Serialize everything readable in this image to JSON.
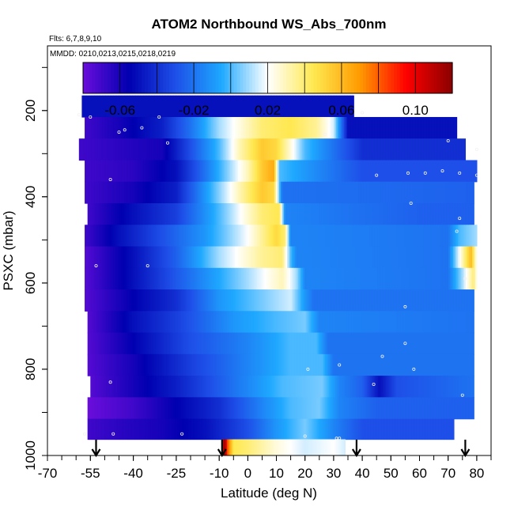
{
  "chart_data": {
    "type": "heatmap",
    "title": "ATOM2 Northbound WS_Abs_700nm",
    "subtitle_flights": "Flts: 6,7,8,9,10",
    "subtitle_dates": "MMDD: 0210,0213,0215,0218,0219",
    "xlabel": "Latitude (deg N)",
    "ylabel": "PSXC (mbar)",
    "xlim": [
      -70,
      85
    ],
    "ylim": [
      1000,
      50
    ],
    "x_ticks": [
      -70,
      -55,
      -40,
      -25,
      -10,
      0,
      10,
      20,
      30,
      40,
      50,
      60,
      70,
      80
    ],
    "x_tick_labels": [
      "-70",
      "-55",
      "-40",
      "-25",
      "-10",
      "0",
      "10",
      "20",
      "30",
      "40",
      "50",
      "60",
      "70",
      "80"
    ],
    "y_ticks": [
      200,
      400,
      600,
      800,
      1000
    ],
    "y_tick_labels": [
      "200",
      "400",
      "600",
      "800",
      "1000"
    ],
    "colorbar": {
      "range": [
        -0.08,
        0.12
      ],
      "ticks": [
        -0.06,
        -0.02,
        0.02,
        0.06,
        0.1
      ],
      "tick_labels": [
        "-0.06",
        "-0.02",
        "0.02",
        "0.06",
        "0.10"
      ],
      "colors": [
        "#6A0DDB",
        "#0000B0",
        "#1E4FE8",
        "#1EA8FF",
        "#FFFFFF",
        "#FFE850",
        "#FF9A00",
        "#FF0000",
        "#8B0000"
      ]
    },
    "layers": [
      {
        "p": 190,
        "lat_min": -58,
        "lat_max": 37,
        "knots": [
          [
            -58,
            -0.05
          ],
          [
            37,
            -0.05
          ]
        ]
      },
      {
        "p": 240,
        "lat_min": -57,
        "lat_max": 73,
        "knots": [
          [
            -57,
            -0.07
          ],
          [
            -45,
            -0.06
          ],
          [
            -30,
            -0.045
          ],
          [
            -20,
            -0.02
          ],
          [
            -10,
            0.01
          ],
          [
            5,
            0.04
          ],
          [
            15,
            0.045
          ],
          [
            24,
            0.035
          ],
          [
            30,
            0.015
          ],
          [
            35,
            -0.05
          ],
          [
            73,
            -0.05
          ]
        ]
      },
      {
        "p": 290,
        "lat_min": -59,
        "lat_max": 76,
        "knots": [
          [
            -59,
            -0.07
          ],
          [
            -45,
            -0.065
          ],
          [
            -30,
            -0.06
          ],
          [
            -20,
            -0.03
          ],
          [
            -10,
            0.0
          ],
          [
            -3,
            0.03
          ],
          [
            5,
            0.055
          ],
          [
            10,
            0.05
          ],
          [
            20,
            0.0
          ],
          [
            35,
            -0.03
          ],
          [
            40,
            -0.04
          ],
          [
            76,
            -0.04
          ]
        ]
      },
      {
        "p": 340,
        "lat_min": -57,
        "lat_max": 80,
        "knots": [
          [
            -57,
            -0.07
          ],
          [
            -40,
            -0.065
          ],
          [
            -25,
            -0.05
          ],
          [
            -15,
            -0.02
          ],
          [
            0,
            0.03
          ],
          [
            5,
            0.055
          ],
          [
            9,
            0.065
          ],
          [
            11,
            0.0
          ],
          [
            40,
            -0.03
          ],
          [
            80,
            -0.03
          ]
        ]
      },
      {
        "p": 390,
        "lat_min": -57,
        "lat_max": 79,
        "knots": [
          [
            -57,
            -0.07
          ],
          [
            -40,
            -0.06
          ],
          [
            -25,
            -0.045
          ],
          [
            -15,
            -0.01
          ],
          [
            0,
            0.04
          ],
          [
            5,
            0.055
          ],
          [
            9,
            0.05
          ],
          [
            12,
            -0.02
          ],
          [
            79,
            -0.025
          ]
        ]
      },
      {
        "p": 440,
        "lat_min": -56,
        "lat_max": 79,
        "knots": [
          [
            -56,
            -0.07
          ],
          [
            -40,
            -0.05
          ],
          [
            -25,
            -0.035
          ],
          [
            -10,
            0.0
          ],
          [
            5,
            0.04
          ],
          [
            11,
            0.045
          ],
          [
            13,
            -0.015
          ],
          [
            60,
            -0.025
          ],
          [
            79,
            -0.025
          ]
        ]
      },
      {
        "p": 490,
        "lat_min": -57,
        "lat_max": 80,
        "knots": [
          [
            -57,
            -0.07
          ],
          [
            -45,
            -0.05
          ],
          [
            -30,
            -0.03
          ],
          [
            -15,
            -0.01
          ],
          [
            0,
            0.02
          ],
          [
            10,
            0.05
          ],
          [
            13,
            0.04
          ],
          [
            15,
            -0.015
          ],
          [
            70,
            -0.02
          ],
          [
            74,
            0.0
          ],
          [
            80,
            0.01
          ]
        ]
      },
      {
        "p": 540,
        "lat_min": -57,
        "lat_max": 80,
        "knots": [
          [
            -57,
            -0.075
          ],
          [
            -40,
            -0.05
          ],
          [
            -25,
            -0.025
          ],
          [
            -10,
            0.01
          ],
          [
            5,
            0.035
          ],
          [
            12,
            0.04
          ],
          [
            15,
            0.0
          ],
          [
            17,
            -0.015
          ],
          [
            70,
            -0.02
          ],
          [
            74,
            0.02
          ],
          [
            78,
            0.06
          ],
          [
            80,
            0.02
          ]
        ]
      },
      {
        "p": 590,
        "lat_min": -57,
        "lat_max": 80,
        "knots": [
          [
            -57,
            -0.075
          ],
          [
            -40,
            -0.05
          ],
          [
            -20,
            -0.02
          ],
          [
            0,
            0.01
          ],
          [
            12,
            0.03
          ],
          [
            17,
            0.01
          ],
          [
            20,
            -0.015
          ],
          [
            70,
            -0.02
          ],
          [
            75,
            0.01
          ],
          [
            79,
            0.04
          ],
          [
            80,
            0.02
          ]
        ]
      },
      {
        "p": 640,
        "lat_min": -57,
        "lat_max": 79,
        "knots": [
          [
            -57,
            -0.075
          ],
          [
            -40,
            -0.055
          ],
          [
            -25,
            -0.04
          ],
          [
            -10,
            -0.01
          ],
          [
            5,
            0.005
          ],
          [
            15,
            0.015
          ],
          [
            20,
            -0.01
          ],
          [
            23,
            -0.02
          ],
          [
            79,
            -0.02
          ]
        ]
      },
      {
        "p": 690,
        "lat_min": -56,
        "lat_max": 79,
        "knots": [
          [
            -56,
            -0.075
          ],
          [
            -40,
            -0.05
          ],
          [
            -25,
            -0.035
          ],
          [
            -5,
            -0.01
          ],
          [
            10,
            0.0
          ],
          [
            20,
            0.005
          ],
          [
            25,
            -0.015
          ],
          [
            79,
            -0.02
          ]
        ]
      },
      {
        "p": 740,
        "lat_min": -56,
        "lat_max": 79,
        "knots": [
          [
            -56,
            -0.075
          ],
          [
            -40,
            -0.055
          ],
          [
            -20,
            -0.03
          ],
          [
            0,
            -0.015
          ],
          [
            15,
            0.0
          ],
          [
            24,
            0.0
          ],
          [
            28,
            -0.02
          ],
          [
            79,
            -0.02
          ]
        ]
      },
      {
        "p": 790,
        "lat_min": -56,
        "lat_max": 79,
        "knots": [
          [
            -56,
            -0.075
          ],
          [
            -40,
            -0.06
          ],
          [
            -20,
            -0.035
          ],
          [
            0,
            -0.015
          ],
          [
            15,
            0.0
          ],
          [
            26,
            0.0
          ],
          [
            30,
            -0.02
          ],
          [
            79,
            -0.02
          ]
        ]
      },
      {
        "p": 840,
        "lat_min": -55,
        "lat_max": 79,
        "knots": [
          [
            -55,
            -0.075
          ],
          [
            -40,
            -0.06
          ],
          [
            -25,
            -0.045
          ],
          [
            -5,
            -0.02
          ],
          [
            12,
            0.0
          ],
          [
            26,
            0.005
          ],
          [
            32,
            -0.015
          ],
          [
            40,
            -0.025
          ],
          [
            46,
            -0.05
          ],
          [
            52,
            -0.03
          ],
          [
            79,
            -0.02
          ]
        ]
      },
      {
        "p": 890,
        "lat_min": -56,
        "lat_max": 79,
        "knots": [
          [
            -56,
            -0.08
          ],
          [
            -40,
            -0.07
          ],
          [
            -25,
            -0.055
          ],
          [
            -10,
            -0.04
          ],
          [
            5,
            -0.015
          ],
          [
            15,
            0.0
          ],
          [
            25,
            0.005
          ],
          [
            32,
            -0.015
          ],
          [
            45,
            -0.025
          ],
          [
            79,
            -0.025
          ]
        ]
      },
      {
        "p": 940,
        "lat_min": -56,
        "lat_max": 72,
        "knots": [
          [
            -56,
            -0.07
          ],
          [
            -45,
            -0.065
          ],
          [
            -30,
            -0.06
          ],
          [
            -15,
            -0.05
          ],
          [
            0,
            -0.03
          ],
          [
            10,
            -0.01
          ],
          [
            20,
            0.005
          ],
          [
            30,
            -0.015
          ],
          [
            40,
            -0.03
          ],
          [
            72,
            -0.03
          ]
        ]
      },
      {
        "p": 985,
        "lat_min": -9,
        "lat_max": 34,
        "knots": [
          [
            -9,
            0.1
          ],
          [
            -8,
            0.12
          ],
          [
            -7,
            0.08
          ],
          [
            -5,
            0.045
          ],
          [
            0,
            0.04
          ],
          [
            10,
            0.025
          ],
          [
            20,
            0.015
          ],
          [
            30,
            0.02
          ],
          [
            34,
            0.015
          ]
        ]
      }
    ],
    "sample_points": [
      [
        -59,
        210
      ],
      [
        -55,
        215
      ],
      [
        -45,
        250
      ],
      [
        -43,
        245
      ],
      [
        -31,
        215
      ],
      [
        -37,
        240
      ],
      [
        -28,
        275
      ],
      [
        27,
        255
      ],
      [
        40,
        205
      ],
      [
        -48,
        360
      ],
      [
        45,
        350
      ],
      [
        56,
        345
      ],
      [
        62,
        345
      ],
      [
        68,
        340
      ],
      [
        74,
        345
      ],
      [
        80,
        350
      ],
      [
        70,
        270
      ],
      [
        80,
        290
      ],
      [
        57,
        415
      ],
      [
        -53,
        560
      ],
      [
        -35,
        560
      ],
      [
        74,
        450
      ],
      [
        73,
        480
      ],
      [
        76,
        590
      ],
      [
        55,
        655
      ],
      [
        55,
        740
      ],
      [
        47,
        770
      ],
      [
        32,
        790
      ],
      [
        58,
        800
      ],
      [
        -48,
        830
      ],
      [
        21,
        800
      ],
      [
        44,
        835
      ],
      [
        75,
        860
      ],
      [
        -57,
        950
      ],
      [
        -47,
        950
      ],
      [
        -23,
        950
      ],
      [
        20,
        955
      ],
      [
        32,
        960
      ],
      [
        31,
        960
      ]
    ],
    "arrows_lat": [
      -53,
      -9,
      38,
      76
    ]
  }
}
